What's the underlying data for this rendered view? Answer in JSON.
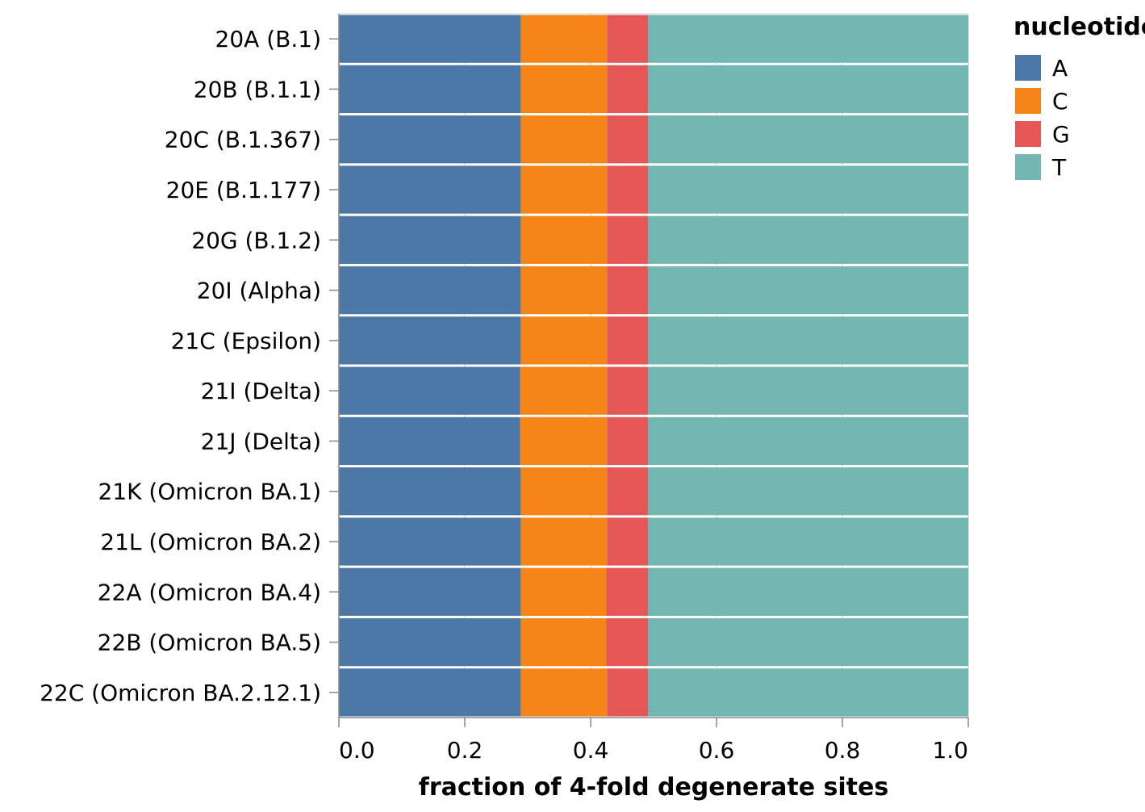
{
  "chart_data": {
    "type": "bar",
    "orientation": "horizontal",
    "stacked": true,
    "normalized": true,
    "categories": [
      "20A (B.1)",
      "20B (B.1.1)",
      "20C (B.1.367)",
      "20E (B.1.177)",
      "20G (B.1.2)",
      "20I (Alpha)",
      "21C (Epsilon)",
      "21I (Delta)",
      "21J (Delta)",
      "21K (Omicron BA.1)",
      "21L (Omicron BA.2)",
      "22A (Omicron BA.4)",
      "22B (Omicron BA.5)",
      "22C (Omicron BA.2.12.1)"
    ],
    "series": [
      {
        "name": "A",
        "color": "#4c78a8",
        "values": [
          0.289,
          0.289,
          0.289,
          0.289,
          0.289,
          0.289,
          0.289,
          0.288,
          0.288,
          0.289,
          0.289,
          0.289,
          0.289,
          0.289
        ]
      },
      {
        "name": "C",
        "color": "#f58518",
        "values": [
          0.137,
          0.137,
          0.137,
          0.137,
          0.137,
          0.137,
          0.137,
          0.138,
          0.138,
          0.137,
          0.137,
          0.136,
          0.136,
          0.137
        ]
      },
      {
        "name": "G",
        "color": "#e45756",
        "values": [
          0.065,
          0.065,
          0.065,
          0.065,
          0.065,
          0.065,
          0.065,
          0.065,
          0.065,
          0.065,
          0.065,
          0.066,
          0.066,
          0.065
        ]
      },
      {
        "name": "T",
        "color": "#72b7b2",
        "values": [
          0.509,
          0.509,
          0.509,
          0.509,
          0.509,
          0.509,
          0.509,
          0.509,
          0.509,
          0.509,
          0.509,
          0.509,
          0.509,
          0.509
        ]
      }
    ],
    "xlabel": "fraction of 4-fold degenerate sites",
    "ylabel": "",
    "xlim": [
      0,
      1
    ],
    "xticks": [
      "0.0",
      "0.2",
      "0.4",
      "0.6",
      "0.8",
      "1.0"
    ],
    "grid": true,
    "legend": {
      "title": "nucleotide",
      "position": "right"
    }
  }
}
